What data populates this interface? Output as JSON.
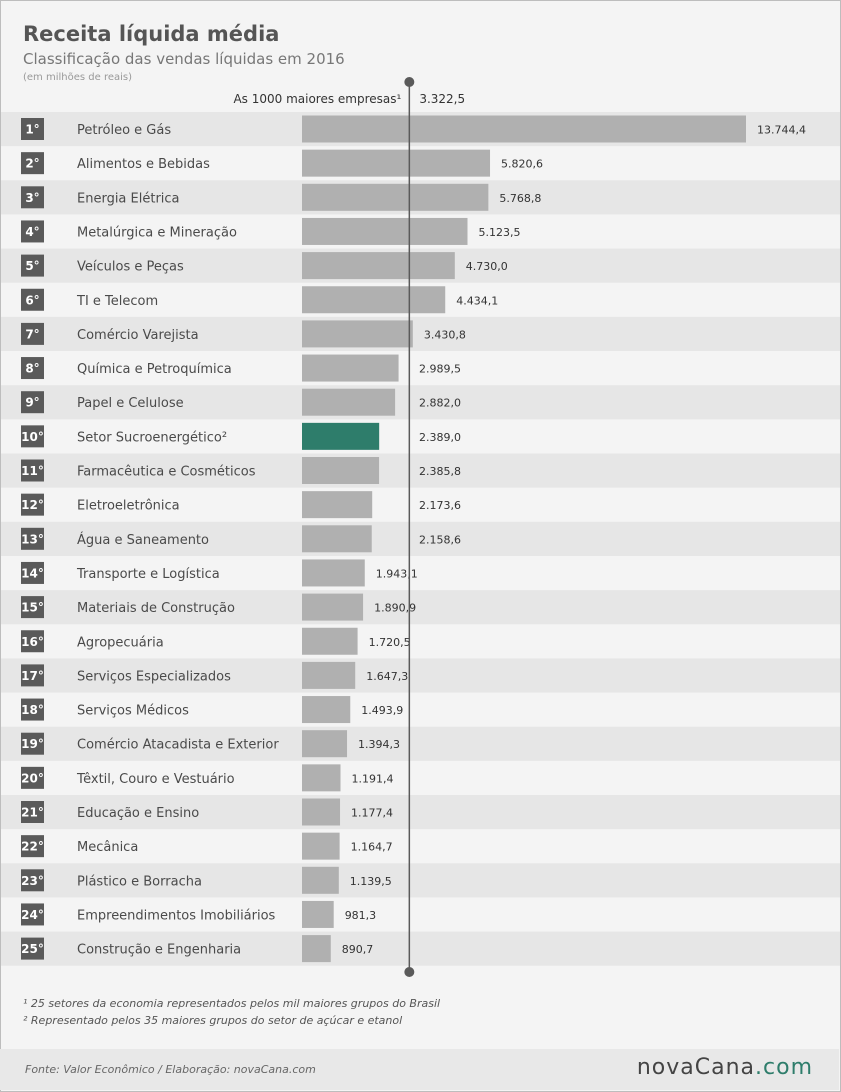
{
  "header": {
    "title": "Receita líquida média",
    "subtitle": "Classificação das vendas líquidas em 2016",
    "unit": "(em milhões de reais)"
  },
  "chart_data": {
    "type": "bar",
    "orientation": "horizontal",
    "reference_line": {
      "label": "As 1000 maiores empresas¹",
      "value_label": "3.322,5",
      "value": 3322.5
    },
    "xlim": [
      0,
      13744.4
    ],
    "colors": {
      "bar": "#b0b0b0",
      "highlight": "#2e7d6b",
      "reference": "#5a5a5a",
      "row_stripe": "#e6e6e6"
    },
    "highlight_index": 9,
    "categories": [
      {
        "rank": "1°",
        "name": "Petróleo e Gás",
        "value": 13744.4,
        "label": "13.744,4"
      },
      {
        "rank": "2°",
        "name": "Alimentos e Bebidas",
        "value": 5820.6,
        "label": "5.820,6"
      },
      {
        "rank": "3°",
        "name": "Energia Elétrica",
        "value": 5768.8,
        "label": "5.768,8"
      },
      {
        "rank": "4°",
        "name": "Metalúrgica e Mineração",
        "value": 5123.5,
        "label": "5.123,5"
      },
      {
        "rank": "5°",
        "name": "Veículos e Peças",
        "value": 4730.0,
        "label": "4.730,0"
      },
      {
        "rank": "6°",
        "name": "TI e Telecom",
        "value": 4434.1,
        "label": "4.434,1"
      },
      {
        "rank": "7°",
        "name": "Comércio Varejista",
        "value": 3430.8,
        "label": "3.430,8"
      },
      {
        "rank": "8°",
        "name": "Química e Petroquímica",
        "value": 2989.5,
        "label": "2.989,5"
      },
      {
        "rank": "9°",
        "name": "Papel e Celulose",
        "value": 2882.0,
        "label": "2.882,0"
      },
      {
        "rank": "10°",
        "name": "Setor Sucroenergético²",
        "value": 2389.0,
        "label": "2.389,0"
      },
      {
        "rank": "11°",
        "name": "Farmacêutica e Cosméticos",
        "value": 2385.8,
        "label": "2.385,8"
      },
      {
        "rank": "12°",
        "name": "Eletroeletrônica",
        "value": 2173.6,
        "label": "2.173,6"
      },
      {
        "rank": "13°",
        "name": "Água e Saneamento",
        "value": 2158.6,
        "label": "2.158,6"
      },
      {
        "rank": "14°",
        "name": "Transporte e Logística",
        "value": 1943.1,
        "label": "1.943,1"
      },
      {
        "rank": "15°",
        "name": "Materiais de Construção",
        "value": 1890.9,
        "label": "1.890,9"
      },
      {
        "rank": "16°",
        "name": "Agropecuária",
        "value": 1720.5,
        "label": "1.720,5"
      },
      {
        "rank": "17°",
        "name": "Serviços Especializados",
        "value": 1647.3,
        "label": "1.647,3"
      },
      {
        "rank": "18°",
        "name": "Serviços Médicos",
        "value": 1493.9,
        "label": "1.493,9"
      },
      {
        "rank": "19°",
        "name": "Comércio Atacadista e Exterior",
        "value": 1394.3,
        "label": "1.394,3"
      },
      {
        "rank": "20°",
        "name": "Têxtil, Couro e Vestuário",
        "value": 1191.4,
        "label": "1.191,4"
      },
      {
        "rank": "21°",
        "name": "Educação e Ensino",
        "value": 1177.4,
        "label": "1.177,4"
      },
      {
        "rank": "22°",
        "name": "Mecânica",
        "value": 1164.7,
        "label": "1.164,7"
      },
      {
        "rank": "23°",
        "name": "Plástico e Borracha",
        "value": 1139.5,
        "label": "1.139,5"
      },
      {
        "rank": "24°",
        "name": "Empreendimentos Imobiliários",
        "value": 981.3,
        "label": "981,3"
      },
      {
        "rank": "25°",
        "name": "Construção e Engenharia",
        "value": 890.7,
        "label": "890,7"
      }
    ]
  },
  "notes": {
    "note1": "¹ 25 setores da economia representados pelos mil maiores grupos do Brasil",
    "note2": "² Representado pelos 35 maiores grupos do setor de açúcar e etanol"
  },
  "footer": {
    "source": "Fonte: Valor Econômico / Elaboração: novaCana.com",
    "logo_main": "novaCana",
    "logo_suffix": ".com"
  }
}
